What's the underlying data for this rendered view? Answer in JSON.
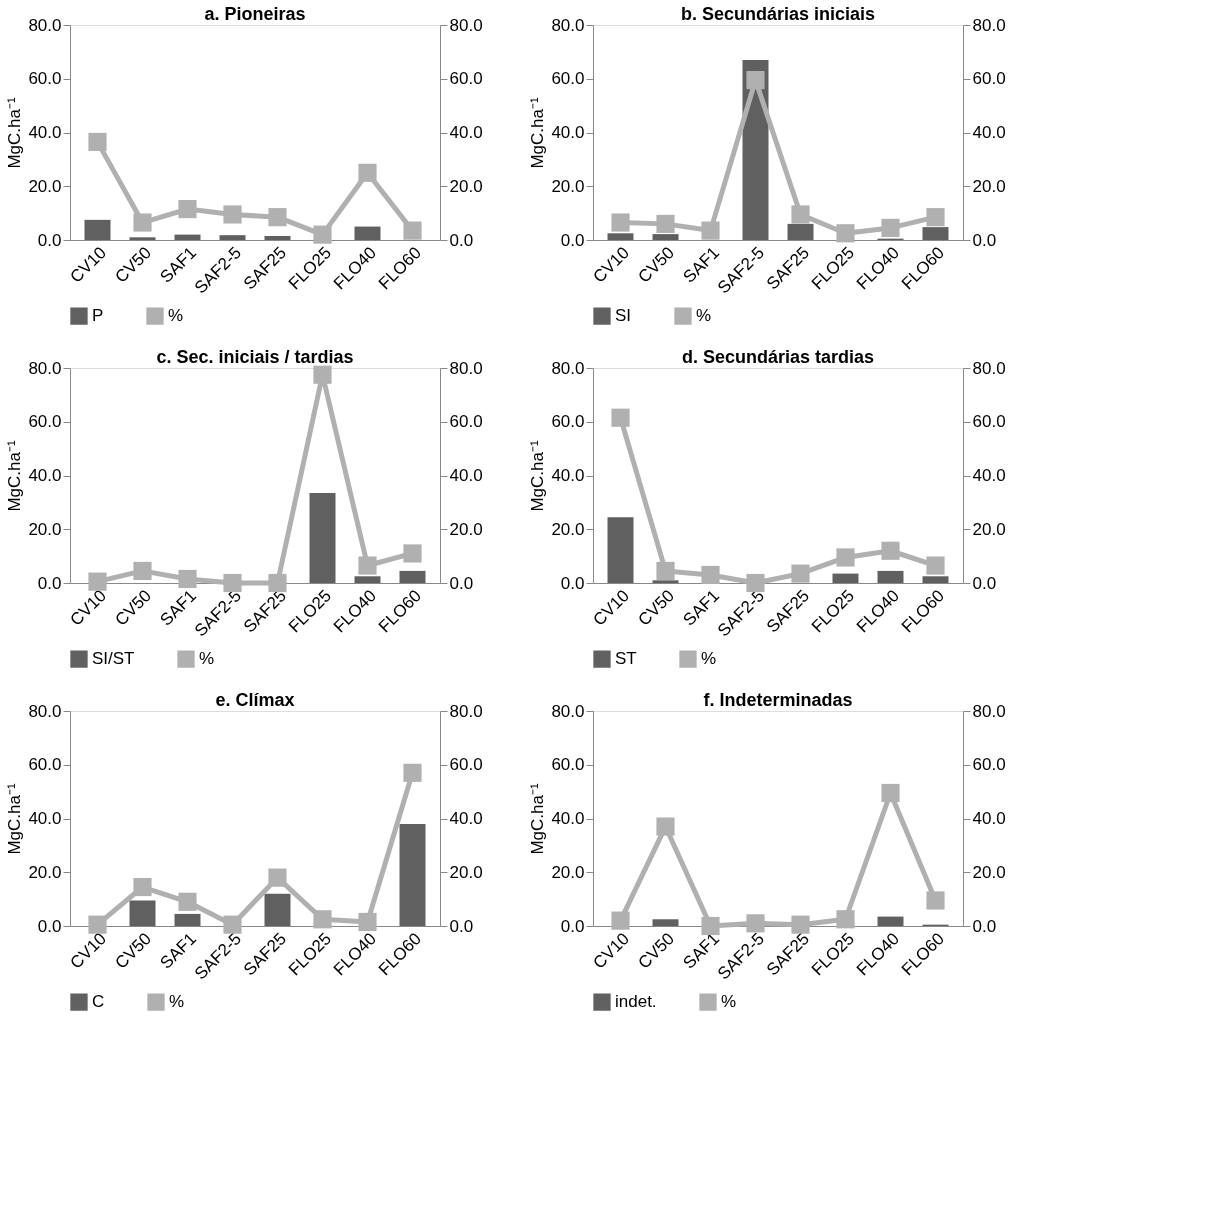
{
  "chart_data": [
    {
      "type": "bar",
      "title": "a. Pioneiras",
      "ylabel": "MgC.ha⁻¹",
      "categories": [
        "CV10",
        "CV50",
        "SAF1",
        "SAF2-5",
        "SAF25",
        "FLO25",
        "FLO40",
        "FLO60"
      ],
      "series": [
        {
          "name": "P",
          "color": "#606060",
          "values": [
            7.5,
            1.0,
            2.0,
            1.8,
            1.5,
            0,
            5.0,
            0
          ]
        },
        {
          "name": "%",
          "type": "line",
          "axis": "y2",
          "color": "#b0b0b0",
          "values": [
            36.5,
            6.5,
            11.5,
            9.5,
            8.5,
            2.0,
            25.0,
            3.5
          ]
        }
      ],
      "ylim": [
        0,
        80
      ],
      "yticks": [
        {
          "value": 0,
          "label": "0.0"
        },
        {
          "value": 20,
          "label": "20.0"
        },
        {
          "value": 40,
          "label": "40.0"
        },
        {
          "value": 60,
          "label": "60.0"
        },
        {
          "value": 80,
          "label": "80.0"
        }
      ],
      "y2lim": [
        0,
        80
      ],
      "y2ticks": [
        {
          "value": 0,
          "label": "0.0"
        },
        {
          "value": 20,
          "label": "20.0"
        },
        {
          "value": 40,
          "label": "40.0"
        },
        {
          "value": 60,
          "label": "60.0"
        },
        {
          "value": 80,
          "label": "80.0"
        }
      ],
      "legend": "bottom",
      "marker": "square",
      "grid": false
    },
    {
      "type": "bar",
      "title": "b. Secundárias iniciais",
      "ylabel": "MgC.ha⁻¹",
      "categories": [
        "CV10",
        "CV50",
        "SAF1",
        "SAF2-5",
        "SAF25",
        "FLO25",
        "FLO40",
        "FLO60"
      ],
      "series": [
        {
          "name": "SI",
          "color": "#606060",
          "values": [
            2.5,
            2.2,
            0,
            67.0,
            6.0,
            0,
            0.5,
            4.8
          ]
        },
        {
          "name": "%",
          "type": "line",
          "axis": "y2",
          "color": "#b0b0b0",
          "values": [
            6.5,
            6.0,
            3.5,
            59.5,
            9.5,
            2.5,
            4.5,
            8.5
          ]
        }
      ],
      "ylim": [
        0,
        80
      ],
      "yticks": [
        {
          "value": 0,
          "label": "0.0"
        },
        {
          "value": 20,
          "label": "20.0"
        },
        {
          "value": 40,
          "label": "40.0"
        },
        {
          "value": 60,
          "label": "60.0"
        },
        {
          "value": 80,
          "label": "80.0"
        }
      ],
      "y2lim": [
        0,
        80
      ],
      "y2ticks": [
        {
          "value": 0,
          "label": "0.0"
        },
        {
          "value": 20,
          "label": "20.0"
        },
        {
          "value": 40,
          "label": "40.0"
        },
        {
          "value": 60,
          "label": "60.0"
        },
        {
          "value": 80,
          "label": "80.0"
        }
      ],
      "legend": "bottom",
      "marker": "square",
      "grid": false
    },
    {
      "type": "bar",
      "title": "c. Sec. iniciais / tardias",
      "ylabel": "MgC.ha⁻¹",
      "categories": [
        "CV10",
        "CV50",
        "SAF1",
        "SAF2-5",
        "SAF25",
        "FLO25",
        "FLO40",
        "FLO60"
      ],
      "series": [
        {
          "name": "SI/ST",
          "color": "#606060",
          "values": [
            0,
            0,
            0,
            0,
            0,
            33.5,
            2.5,
            4.5
          ]
        },
        {
          "name": "%",
          "type": "line",
          "axis": "y2",
          "color": "#b0b0b0",
          "values": [
            0.5,
            4.5,
            1.5,
            0,
            0,
            77.5,
            6.5,
            11.0
          ]
        }
      ],
      "ylim": [
        0,
        80
      ],
      "yticks": [
        {
          "value": 0,
          "label": "0.0"
        },
        {
          "value": 20,
          "label": "20.0"
        },
        {
          "value": 40,
          "label": "40.0"
        },
        {
          "value": 60,
          "label": "60.0"
        },
        {
          "value": 80,
          "label": "80.0"
        }
      ],
      "y2lim": [
        0,
        80
      ],
      "y2ticks": [
        {
          "value": 0,
          "label": "0.0"
        },
        {
          "value": 20,
          "label": "20.0"
        },
        {
          "value": 40,
          "label": "40.0"
        },
        {
          "value": 60,
          "label": "60.0"
        },
        {
          "value": 80,
          "label": "80.0"
        }
      ],
      "legend": "bottom",
      "marker": "square",
      "grid": false
    },
    {
      "type": "bar",
      "title": "d. Secundárias tardias",
      "ylabel": "MgC.ha⁻¹",
      "categories": [
        "CV10",
        "CV50",
        "SAF1",
        "SAF2-5",
        "SAF25",
        "FLO25",
        "FLO40",
        "FLO60"
      ],
      "series": [
        {
          "name": "ST",
          "color": "#606060",
          "values": [
            24.5,
            1.0,
            0,
            0,
            0,
            3.5,
            4.5,
            2.5
          ]
        },
        {
          "name": "%",
          "type": "line",
          "axis": "y2",
          "color": "#b0b0b0",
          "values": [
            61.5,
            4.5,
            3.0,
            0,
            3.5,
            9.5,
            12.0,
            6.5
          ]
        }
      ],
      "ylim": [
        0,
        80
      ],
      "yticks": [
        {
          "value": 0,
          "label": "0.0"
        },
        {
          "value": 20,
          "label": "20.0"
        },
        {
          "value": 40,
          "label": "40.0"
        },
        {
          "value": 60,
          "label": "60.0"
        },
        {
          "value": 80,
          "label": "80.0"
        }
      ],
      "y2lim": [
        0,
        80
      ],
      "y2ticks": [
        {
          "value": 0,
          "label": "0.0"
        },
        {
          "value": 20,
          "label": "20.0"
        },
        {
          "value": 40,
          "label": "40.0"
        },
        {
          "value": 60,
          "label": "60.0"
        },
        {
          "value": 80,
          "label": "80.0"
        }
      ],
      "legend": "bottom",
      "marker": "square",
      "grid": false
    },
    {
      "type": "bar",
      "title": "e. Clímax",
      "ylabel": "MgC.ha⁻¹",
      "categories": [
        "CV10",
        "CV50",
        "SAF1",
        "SAF2-5",
        "SAF25",
        "FLO25",
        "FLO40",
        "FLO60"
      ],
      "series": [
        {
          "name": "C",
          "color": "#606060",
          "values": [
            0,
            9.5,
            4.5,
            0,
            12.0,
            0,
            0,
            38.0
          ]
        },
        {
          "name": "%",
          "type": "line",
          "axis": "y2",
          "color": "#b0b0b0",
          "values": [
            0.5,
            14.5,
            9.0,
            0.5,
            18.0,
            2.5,
            1.5,
            57.0
          ]
        }
      ],
      "ylim": [
        0,
        80
      ],
      "yticks": [
        {
          "value": 0,
          "label": "0.0"
        },
        {
          "value": 20,
          "label": "20.0"
        },
        {
          "value": 40,
          "label": "40.0"
        },
        {
          "value": 60,
          "label": "60.0"
        },
        {
          "value": 80,
          "label": "80.0"
        }
      ],
      "y2lim": [
        0,
        80
      ],
      "y2ticks": [
        {
          "value": 0,
          "label": "0.0"
        },
        {
          "value": 20,
          "label": "20.0"
        },
        {
          "value": 40,
          "label": "40.0"
        },
        {
          "value": 60,
          "label": "60.0"
        },
        {
          "value": 80,
          "label": "80.0"
        }
      ],
      "legend": "bottom",
      "marker": "square",
      "grid": false
    },
    {
      "type": "bar",
      "title": "f. Indeterminadas",
      "ylabel": "MgC.ha⁻¹",
      "categories": [
        "CV10",
        "CV50",
        "SAF1",
        "SAF2-5",
        "SAF25",
        "FLO25",
        "FLO40",
        "FLO60"
      ],
      "series": [
        {
          "name": "indet.",
          "color": "#606060",
          "values": [
            0,
            2.5,
            0,
            0,
            0,
            0,
            3.5,
            0.5
          ]
        },
        {
          "name": "%",
          "type": "line",
          "axis": "y2",
          "color": "#b0b0b0",
          "values": [
            2.0,
            37.0,
            0,
            1.0,
            0.5,
            2.5,
            49.5,
            9.5
          ]
        }
      ],
      "ylim": [
        0,
        80
      ],
      "yticks": [
        {
          "value": 0,
          "label": "0.0"
        },
        {
          "value": 20,
          "label": "20.0"
        },
        {
          "value": 40,
          "label": "40.0"
        },
        {
          "value": 60,
          "label": "60.0"
        },
        {
          "value": 80,
          "label": "80.0"
        }
      ],
      "y2lim": [
        0,
        80
      ],
      "y2ticks": [
        {
          "value": 0,
          "label": "0.0"
        },
        {
          "value": 20,
          "label": "20.0"
        },
        {
          "value": 40,
          "label": "40.0"
        },
        {
          "value": 60,
          "label": "60.0"
        },
        {
          "value": 80,
          "label": "80.0"
        }
      ],
      "legend": "bottom",
      "marker": "square",
      "grid": false
    }
  ]
}
